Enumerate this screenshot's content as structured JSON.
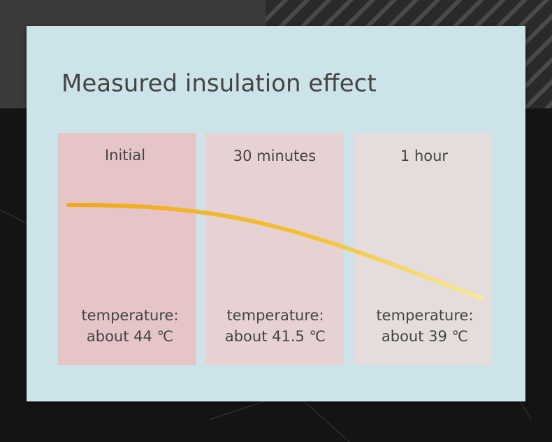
{
  "title": "Measured insulation effect",
  "panels": [
    {
      "label": "Initial",
      "lines": [
        "temperature:",
        "about 44 ℃"
      ]
    },
    {
      "label": "30 minutes",
      "lines": [
        "temperature:",
        "about 41.5 ℃"
      ]
    },
    {
      "label": "1 hour",
      "lines": [
        "temperature:",
        "about 39 ℃"
      ]
    }
  ]
}
